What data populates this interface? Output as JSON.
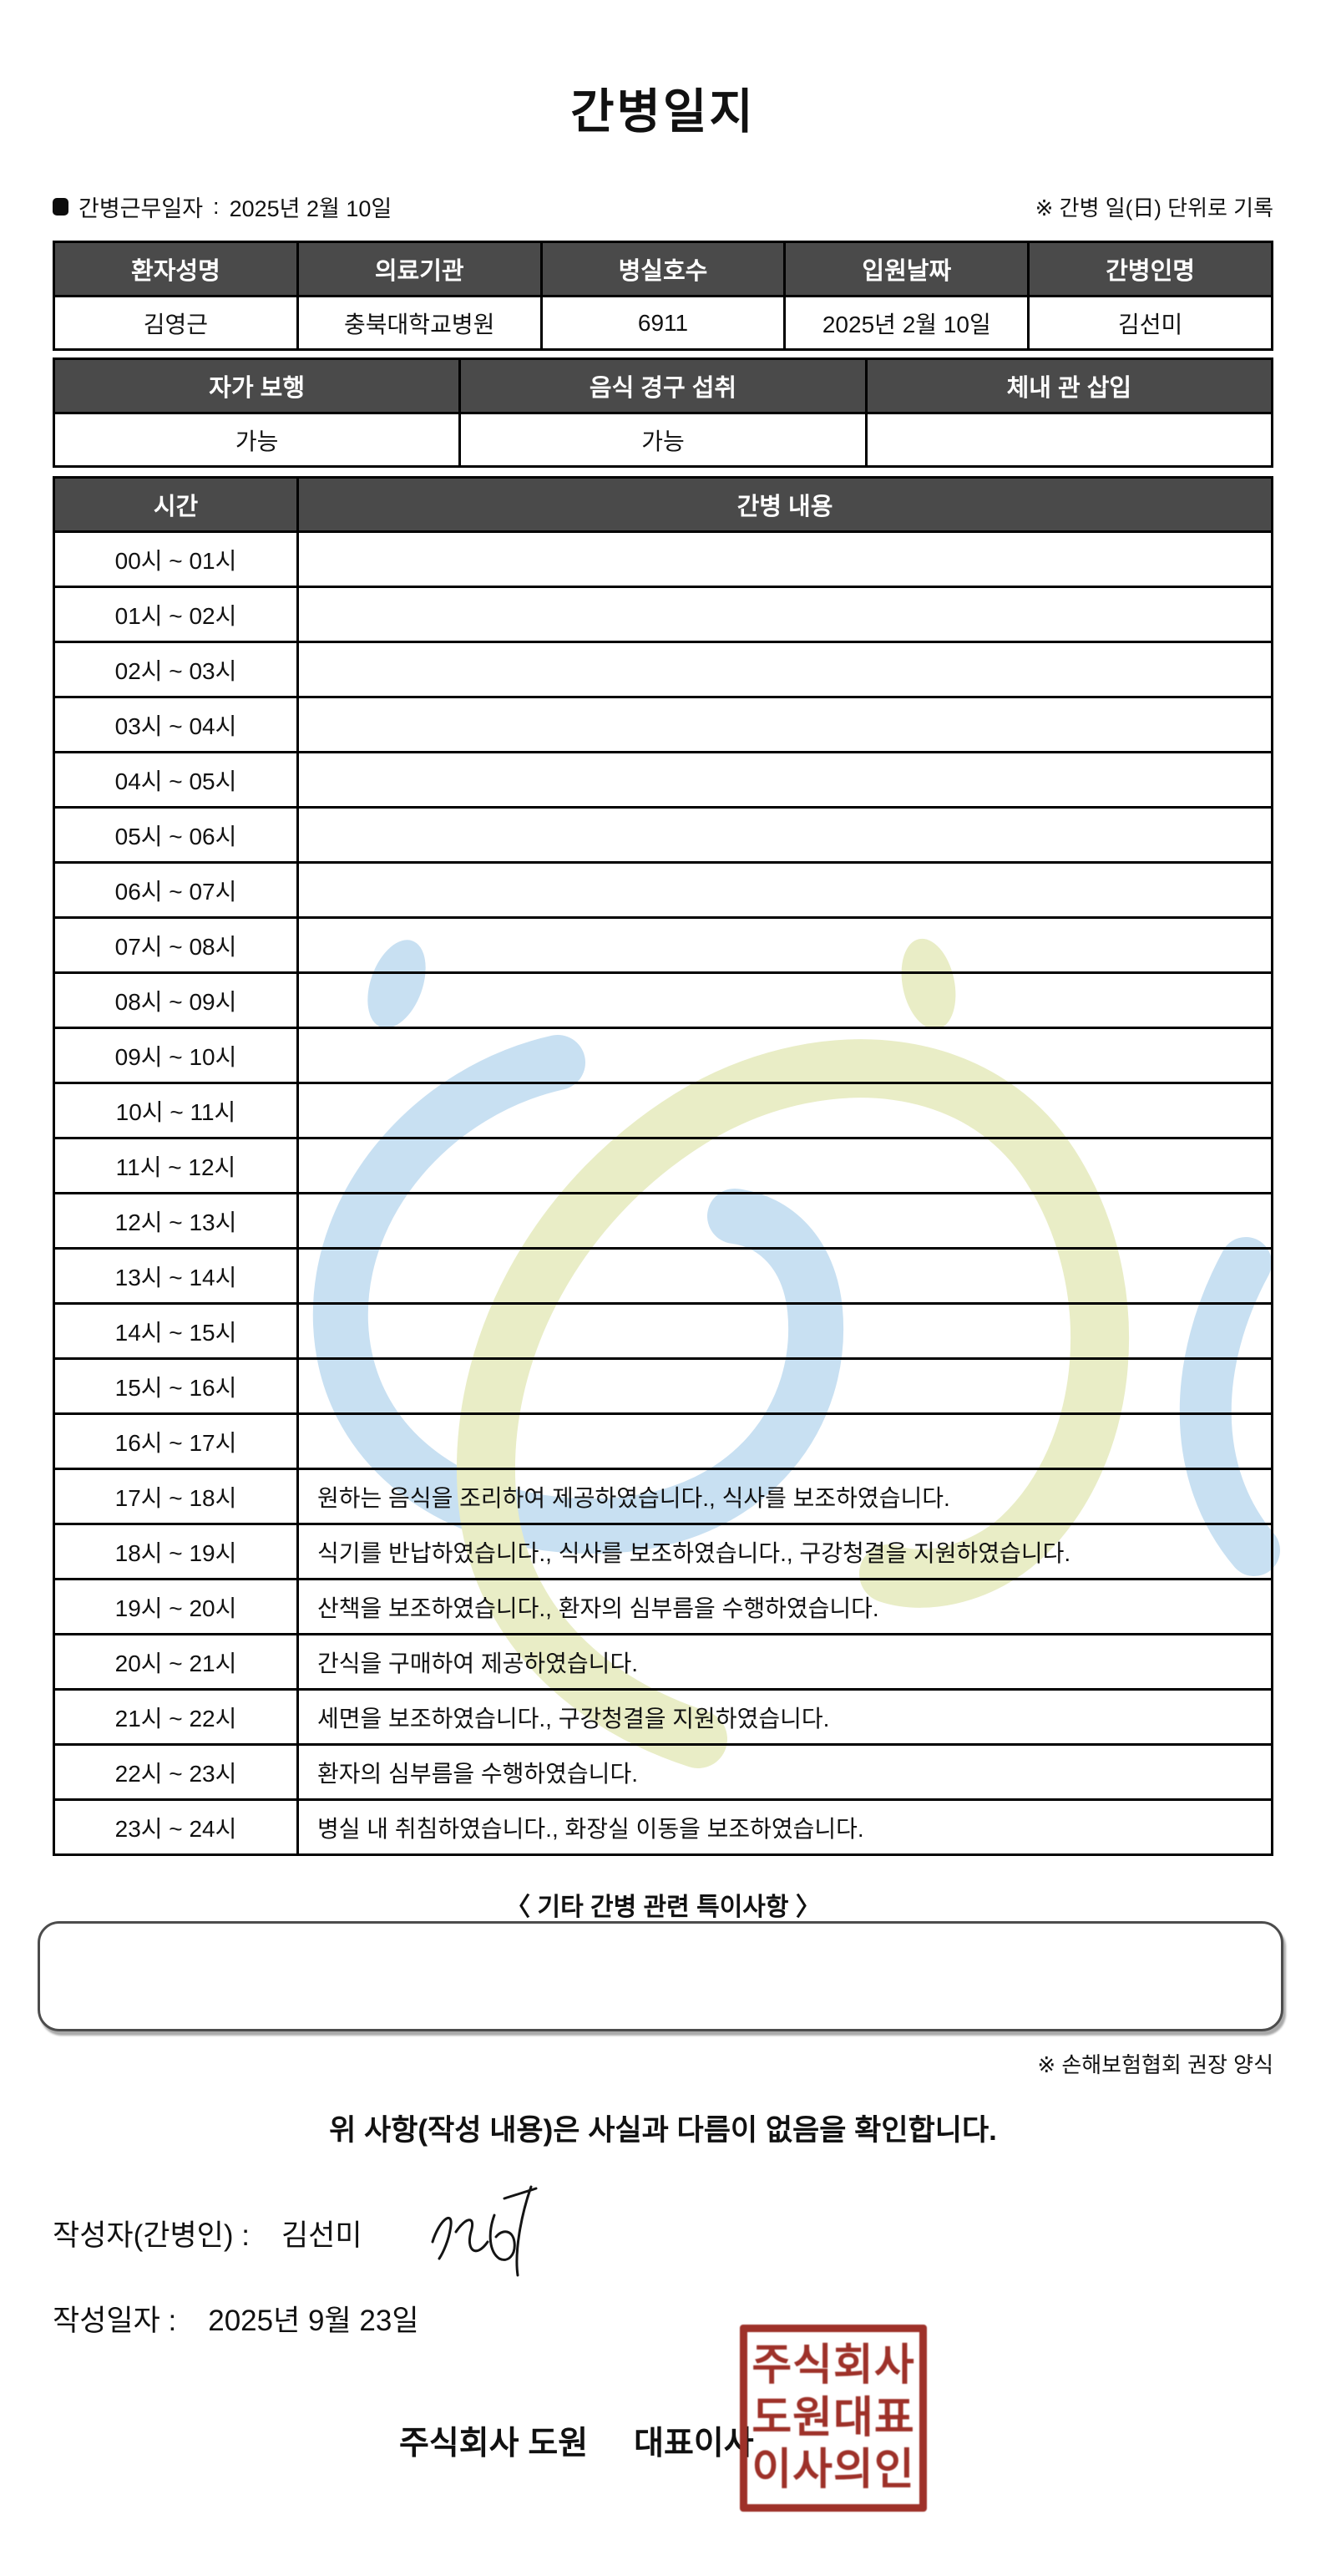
{
  "title": "간병일지",
  "meta": {
    "label": "간병근무일자",
    "separator": ":",
    "value": "2025년 2월 10일",
    "note": "※ 간병 일(日) 단위로 기록"
  },
  "patient_table": {
    "headers": [
      "환자성명",
      "의료기관",
      "병실호수",
      "입원날짜",
      "간병인명"
    ],
    "values": [
      "김영근",
      "충북대학교병원",
      "6911",
      "2025년 2월 10일",
      "김선미"
    ]
  },
  "status_table": {
    "headers": [
      "자가 보행",
      "음식 경구 섭취",
      "체내 관 삽입"
    ],
    "values": [
      "가능",
      "가능",
      ""
    ]
  },
  "care_table": {
    "time_header": "시간",
    "content_header": "간병 내용",
    "rows": [
      {
        "time": "00시 ~ 01시",
        "content": ""
      },
      {
        "time": "01시 ~ 02시",
        "content": ""
      },
      {
        "time": "02시 ~ 03시",
        "content": ""
      },
      {
        "time": "03시 ~ 04시",
        "content": ""
      },
      {
        "time": "04시 ~ 05시",
        "content": ""
      },
      {
        "time": "05시 ~ 06시",
        "content": ""
      },
      {
        "time": "06시 ~ 07시",
        "content": ""
      },
      {
        "time": "07시 ~ 08시",
        "content": ""
      },
      {
        "time": "08시 ~ 09시",
        "content": ""
      },
      {
        "time": "09시 ~ 10시",
        "content": ""
      },
      {
        "time": "10시 ~ 11시",
        "content": ""
      },
      {
        "time": "11시 ~ 12시",
        "content": ""
      },
      {
        "time": "12시 ~ 13시",
        "content": ""
      },
      {
        "time": "13시 ~ 14시",
        "content": ""
      },
      {
        "time": "14시 ~ 15시",
        "content": ""
      },
      {
        "time": "15시 ~ 16시",
        "content": ""
      },
      {
        "time": "16시 ~ 17시",
        "content": ""
      },
      {
        "time": "17시 ~ 18시",
        "content": "원하는 음식을 조리하여 제공하였습니다., 식사를 보조하였습니다."
      },
      {
        "time": "18시 ~ 19시",
        "content": "식기를 반납하였습니다., 식사를 보조하였습니다., 구강청결을 지원하였습니다."
      },
      {
        "time": "19시 ~ 20시",
        "content": "산책을 보조하였습니다., 환자의 심부름을 수행하였습니다."
      },
      {
        "time": "20시 ~ 21시",
        "content": "간식을 구매하여 제공하였습니다."
      },
      {
        "time": "21시 ~ 22시",
        "content": "세면을 보조하였습니다., 구강청결을 지원하였습니다."
      },
      {
        "time": "22시 ~ 23시",
        "content": "환자의 심부름을 수행하였습니다."
      },
      {
        "time": "23시 ~ 24시",
        "content": "병실 내 취침하였습니다., 화장실 이동을 보조하였습니다."
      }
    ]
  },
  "special_notes": {
    "heading": "〈 기타 간병 관련 특이사항 〉",
    "content": "",
    "footnote": "※ 손해보험협회 권장 양식"
  },
  "confirmation": "위 사항(작성 내용)은 사실과 다름이 없음을 확인합니다.",
  "signature_section": {
    "writer_label": "작성자(간병인) :",
    "writer_name": "김선미",
    "date_label": "작성일자 :",
    "date_value": "2025년 9월 23일",
    "company": "주식회사 도원",
    "role": "대표이사",
    "seal_lines": [
      "주식회사",
      "도원대표",
      "이사의인"
    ]
  },
  "colors": {
    "header_bg": "#4a4a4a",
    "border": "#000000",
    "seal_red": "#9e3129",
    "watermark_blue": "#c8e0f2",
    "watermark_green": "#e9edc6"
  }
}
